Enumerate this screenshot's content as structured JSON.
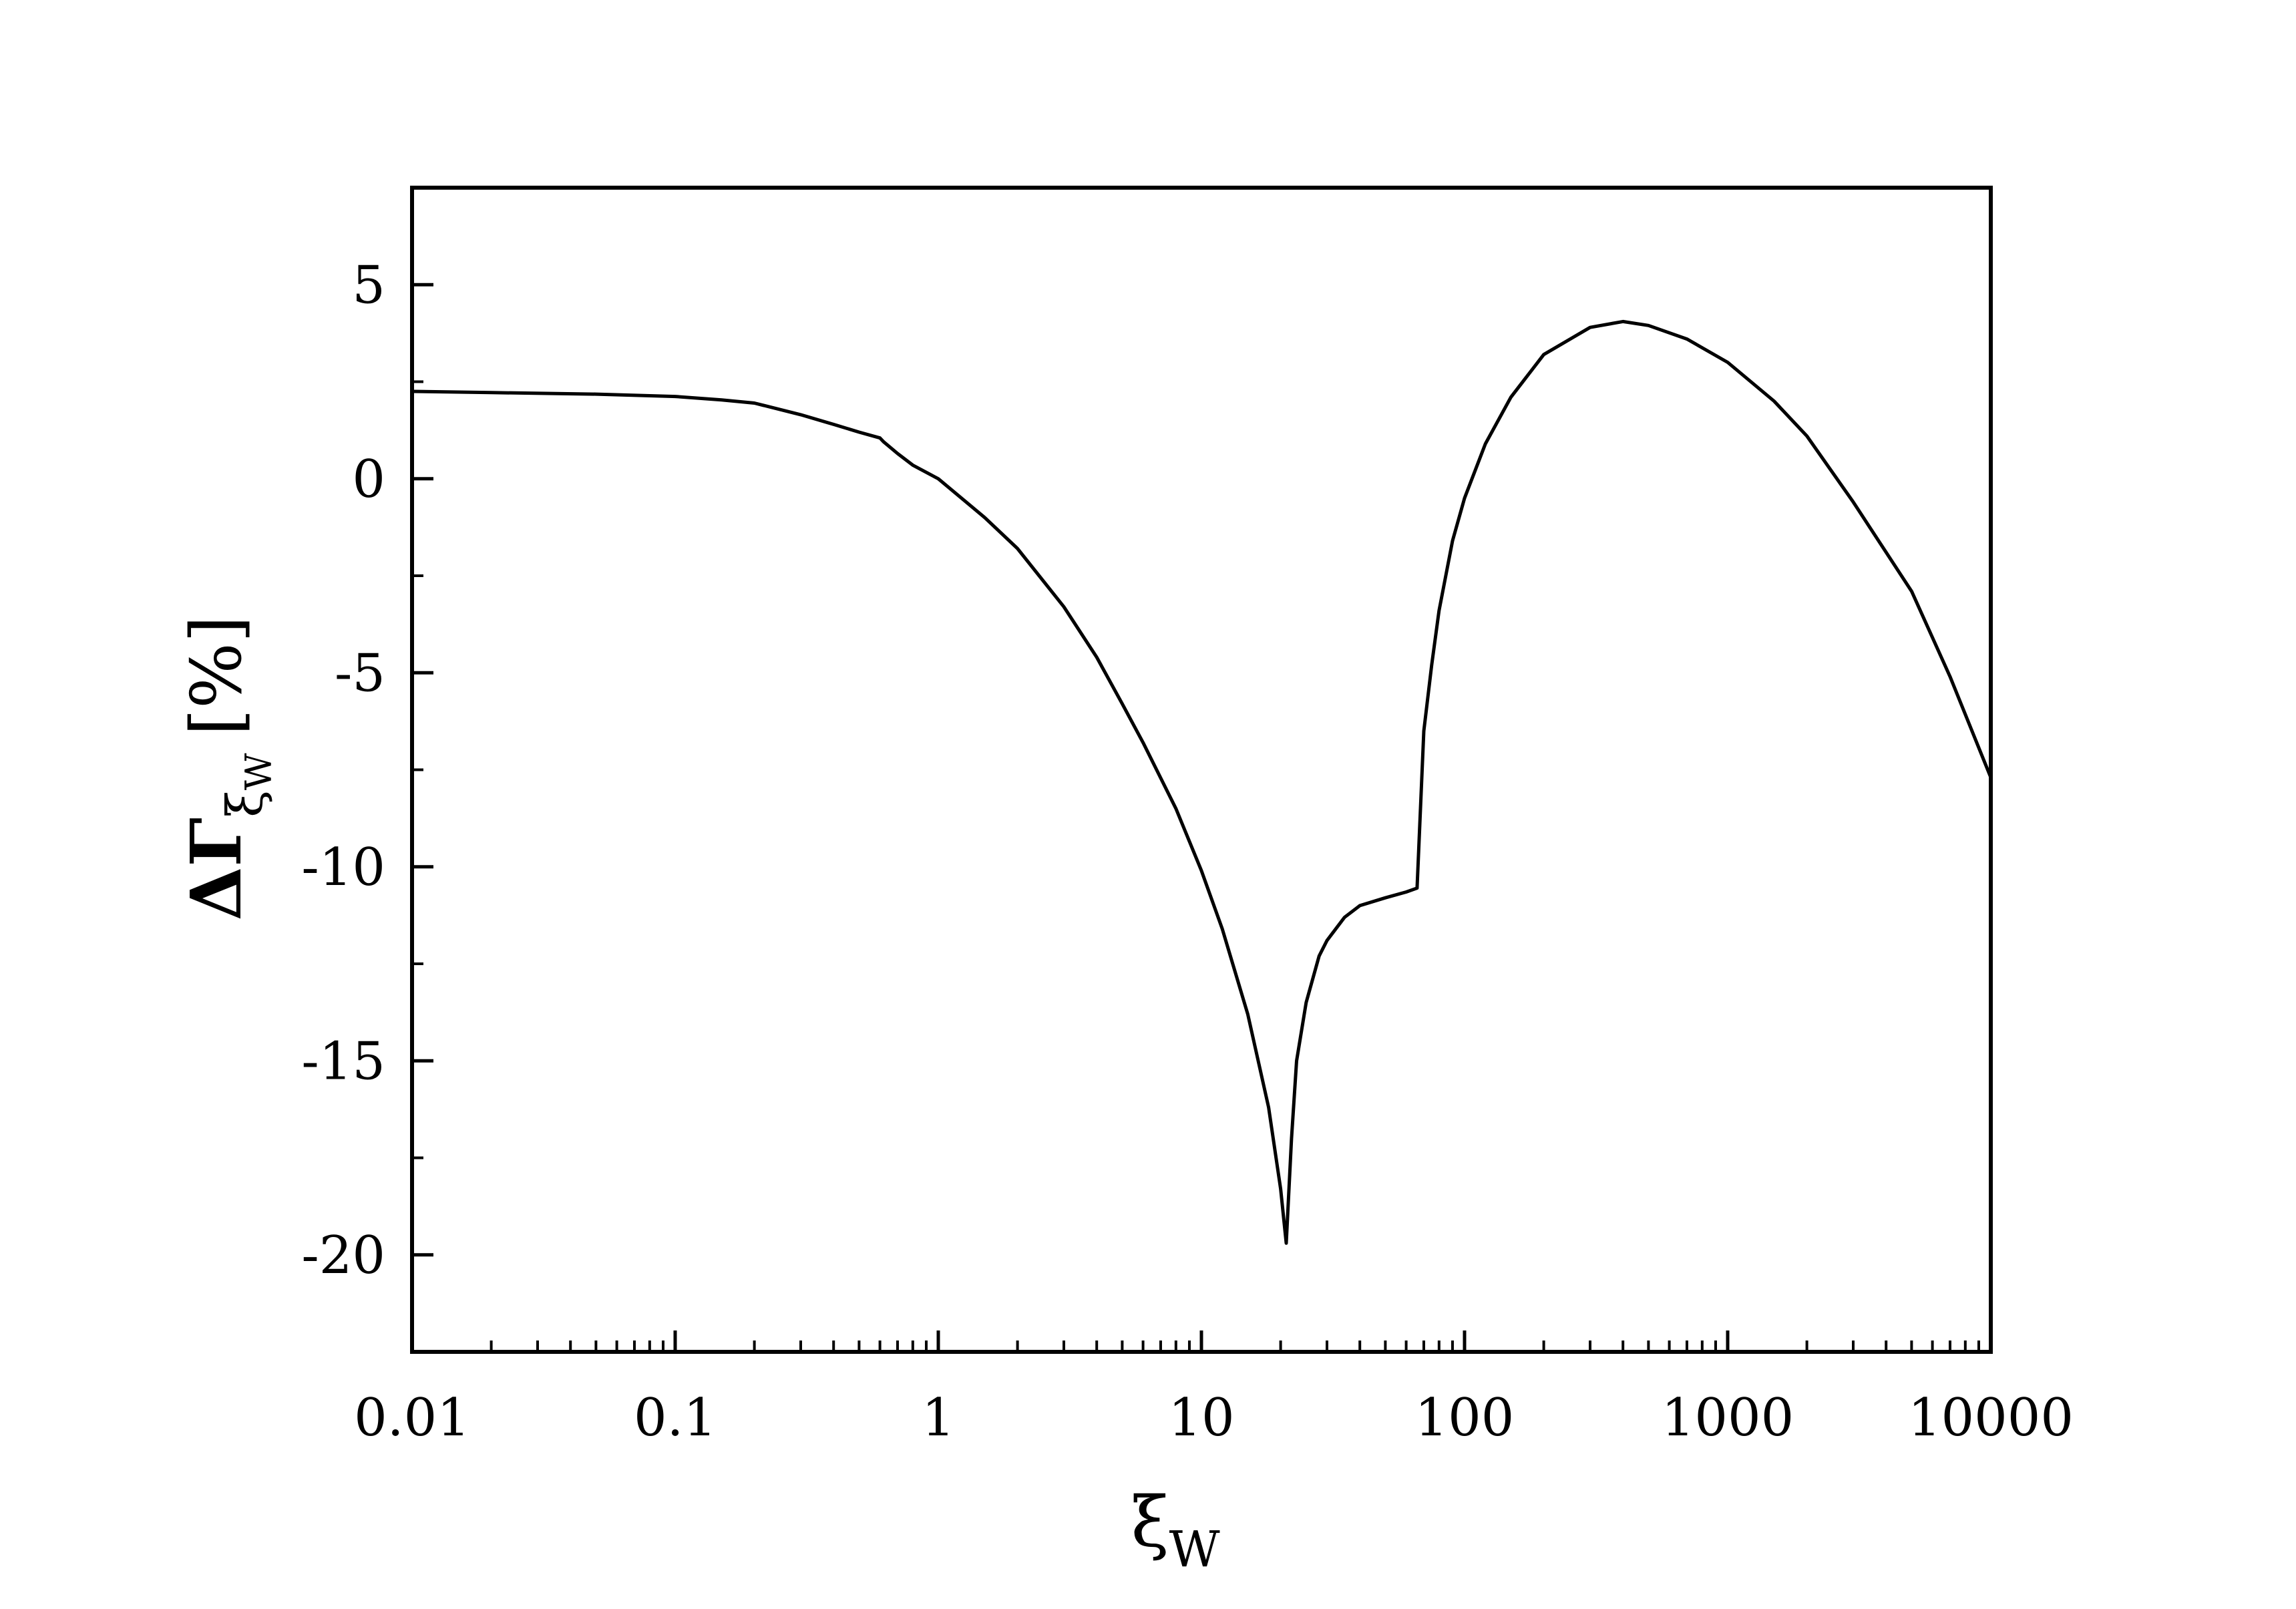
{
  "chart_data": {
    "type": "line",
    "title": "",
    "x_scale": "log",
    "xlim": [
      0.01,
      10000
    ],
    "ylim": [
      -22.5,
      7.5
    ],
    "grid": false,
    "legend": "none",
    "xlabel": {
      "symbol": "ξ",
      "subscript": "W"
    },
    "ylabel": {
      "prefix": "ΔΓ",
      "subscript_symbol": "ξ",
      "subscript_sub": "W",
      "unit": "[%]"
    },
    "x_ticks": [
      {
        "value": 0.01,
        "label": "0.01"
      },
      {
        "value": 0.1,
        "label": "0.1"
      },
      {
        "value": 1,
        "label": "1"
      },
      {
        "value": 10,
        "label": "10"
      },
      {
        "value": 100,
        "label": "100"
      },
      {
        "value": 1000,
        "label": "1000"
      },
      {
        "value": 10000,
        "label": "10000"
      }
    ],
    "y_ticks": [
      {
        "value": 5,
        "label": "5"
      },
      {
        "value": 0,
        "label": "0"
      },
      {
        "value": -5,
        "label": "-5"
      },
      {
        "value": -10,
        "label": "-10"
      },
      {
        "value": -15,
        "label": "-15"
      },
      {
        "value": -20,
        "label": "-20"
      }
    ],
    "y_minor_ticks": [
      2.5,
      -2.5,
      -7.5,
      -12.5,
      -17.5
    ],
    "series": [
      {
        "color": "#000000",
        "x": [
          0.01,
          0.02,
          0.05,
          0.1,
          0.15,
          0.2,
          0.3,
          0.4,
          0.5,
          0.6,
          0.62,
          0.7,
          0.8,
          1,
          1.5,
          2,
          3,
          4,
          5,
          6,
          8,
          10,
          12,
          15,
          18,
          20,
          21,
          22,
          23,
          25,
          28,
          30,
          35,
          40,
          50,
          60,
          66,
          68,
          70,
          75,
          80,
          90,
          100,
          120,
          150,
          200,
          300,
          400,
          500,
          700,
          1000,
          1500,
          2000,
          3000,
          5000,
          7000,
          10000
        ],
        "y": [
          2.25,
          2.22,
          2.18,
          2.12,
          2.03,
          1.95,
          1.65,
          1.4,
          1.2,
          1.05,
          0.95,
          0.65,
          0.35,
          0.0,
          -1.0,
          -1.8,
          -3.3,
          -4.6,
          -5.8,
          -6.8,
          -8.5,
          -10.1,
          -11.6,
          -13.8,
          -16.2,
          -18.3,
          -19.7,
          -17.0,
          -15.0,
          -13.5,
          -12.3,
          -11.9,
          -11.3,
          -11.0,
          -10.8,
          -10.65,
          -10.55,
          -8.5,
          -6.5,
          -4.8,
          -3.4,
          -1.6,
          -0.5,
          0.9,
          2.1,
          3.2,
          3.9,
          4.05,
          3.95,
          3.6,
          3.0,
          2.0,
          1.1,
          -0.6,
          -2.9,
          -5.1,
          -7.7
        ]
      }
    ]
  }
}
